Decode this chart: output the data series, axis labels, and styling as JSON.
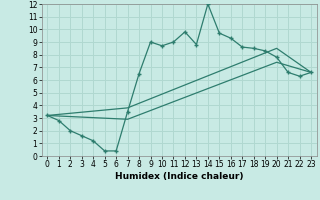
{
  "xlabel": "Humidex (Indice chaleur)",
  "ylabel": "",
  "xlim": [
    -0.5,
    23.5
  ],
  "ylim": [
    0,
    12
  ],
  "xticks": [
    0,
    1,
    2,
    3,
    4,
    5,
    6,
    7,
    8,
    9,
    10,
    11,
    12,
    13,
    14,
    15,
    16,
    17,
    18,
    19,
    20,
    21,
    22,
    23
  ],
  "yticks": [
    0,
    1,
    2,
    3,
    4,
    5,
    6,
    7,
    8,
    9,
    10,
    11,
    12
  ],
  "bg_color": "#c8eae4",
  "line_color": "#2e7d6e",
  "grid_color": "#b0d8d0",
  "line1_x": [
    0,
    1,
    2,
    3,
    4,
    5,
    6,
    7,
    8,
    9,
    10,
    11,
    12,
    13,
    14,
    15,
    16,
    17,
    18,
    19,
    20,
    21,
    22,
    23
  ],
  "line1_y": [
    3.2,
    2.8,
    2.0,
    1.6,
    1.2,
    0.4,
    0.4,
    3.5,
    6.5,
    9.0,
    8.7,
    9.0,
    9.8,
    8.8,
    12.0,
    9.7,
    9.3,
    8.6,
    8.5,
    8.3,
    7.8,
    6.6,
    6.3,
    6.6
  ],
  "line2_x": [
    0,
    7,
    20,
    23
  ],
  "line2_y": [
    3.2,
    3.8,
    8.5,
    6.6
  ],
  "line3_x": [
    0,
    7,
    20,
    23
  ],
  "line3_y": [
    3.2,
    2.9,
    7.4,
    6.6
  ]
}
